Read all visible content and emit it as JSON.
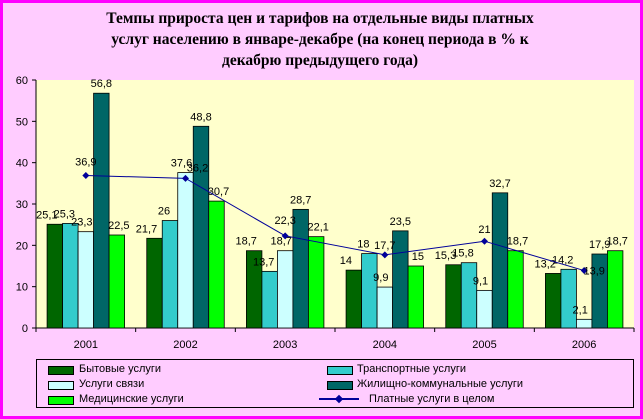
{
  "title_lines": [
    "Темпы прироста цен и тарифов на отдельные виды платных",
    "услуг населению  в январе-декабре (на конец периода в % к",
    "декабрю предыдущего года)"
  ],
  "colors": {
    "background": "#FFCCFF",
    "plot_area": "#FFFFCC",
    "border": "#FF00FF",
    "line": "#000099"
  },
  "chart_data": {
    "type": "bar",
    "categories": [
      "2001",
      "2002",
      "2003",
      "2004",
      "2005",
      "2006"
    ],
    "ylim": [
      0,
      60
    ],
    "yticks": [
      0,
      10,
      20,
      30,
      40,
      50,
      60
    ],
    "grid": false,
    "legend_position": "bottom",
    "series": [
      {
        "name": "Бытовые услуги",
        "color": "#006600",
        "values": [
          25.1,
          21.7,
          18.7,
          14,
          15.3,
          13.2
        ]
      },
      {
        "name": "Транспортные услуги",
        "color": "#33CCCC",
        "values": [
          25.3,
          26,
          13.7,
          18,
          15.8,
          14.2
        ]
      },
      {
        "name": "Услуги связи",
        "color": "#CCFFFF",
        "values": [
          23.3,
          37.6,
          18.7,
          9.9,
          9.1,
          2.1
        ]
      },
      {
        "name": "Жилищно-коммунальные услуги",
        "color": "#006666",
        "values": [
          56.8,
          48.8,
          28.7,
          23.5,
          32.7,
          17.9
        ]
      },
      {
        "name": "Медицинские услуги",
        "color": "#00FF00",
        "values": [
          22.5,
          30.7,
          22.1,
          15,
          18.7,
          18.7
        ]
      }
    ],
    "line_series": {
      "name": "Платные услуги в целом",
      "values": [
        36.9,
        36.2,
        22.3,
        17.7,
        21,
        13.9
      ]
    }
  }
}
